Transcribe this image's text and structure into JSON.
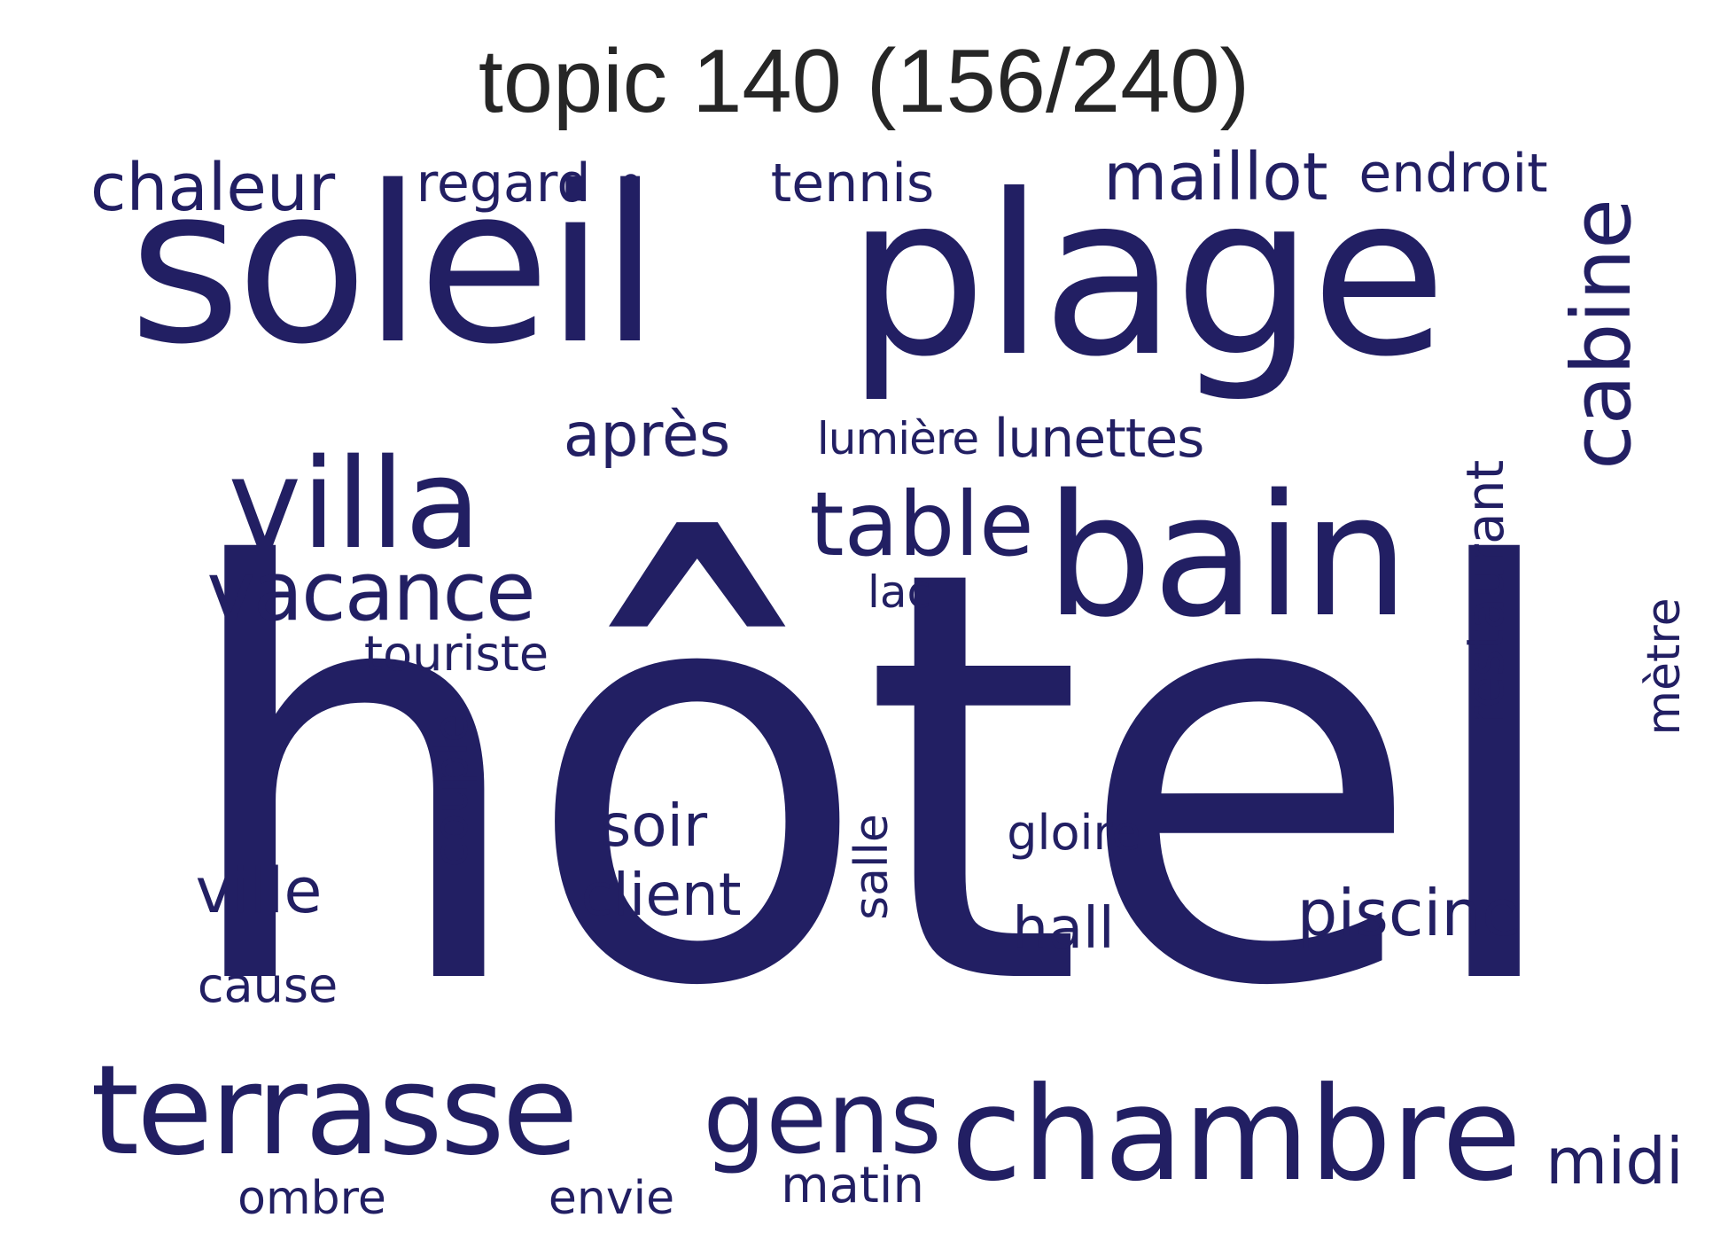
{
  "title": "topic 140 (156/240)",
  "color": "#221f63",
  "words": {
    "hotel": "hôtel",
    "soleil": "soleil",
    "plage": "plage",
    "chambre": "chambre",
    "bain": "bain",
    "terrasse": "terrasse",
    "villa": "villa",
    "vacance": "vacance",
    "table": "table",
    "gens": "gens",
    "maillot": "maillot",
    "chaleur": "chaleur",
    "cabine": "cabine",
    "apres": "après",
    "piscine": "piscine",
    "midi": "midi",
    "endroit": "endroit",
    "regard": "regard",
    "tennis": "tennis",
    "lunettes": "lunettes",
    "lumiere": "lumière",
    "restaurant": "restaurant",
    "touriste": "touriste",
    "soir": "soir",
    "client": "client",
    "ville": "ville",
    "hall": "hall",
    "gloire": "gloire",
    "metre": "mètre",
    "couple": "couple",
    "salle": "salle",
    "lac": "lac",
    "cause": "cause",
    "matin": "matin",
    "ombre": "ombre",
    "envie": "envie",
    "bullet": "•"
  }
}
